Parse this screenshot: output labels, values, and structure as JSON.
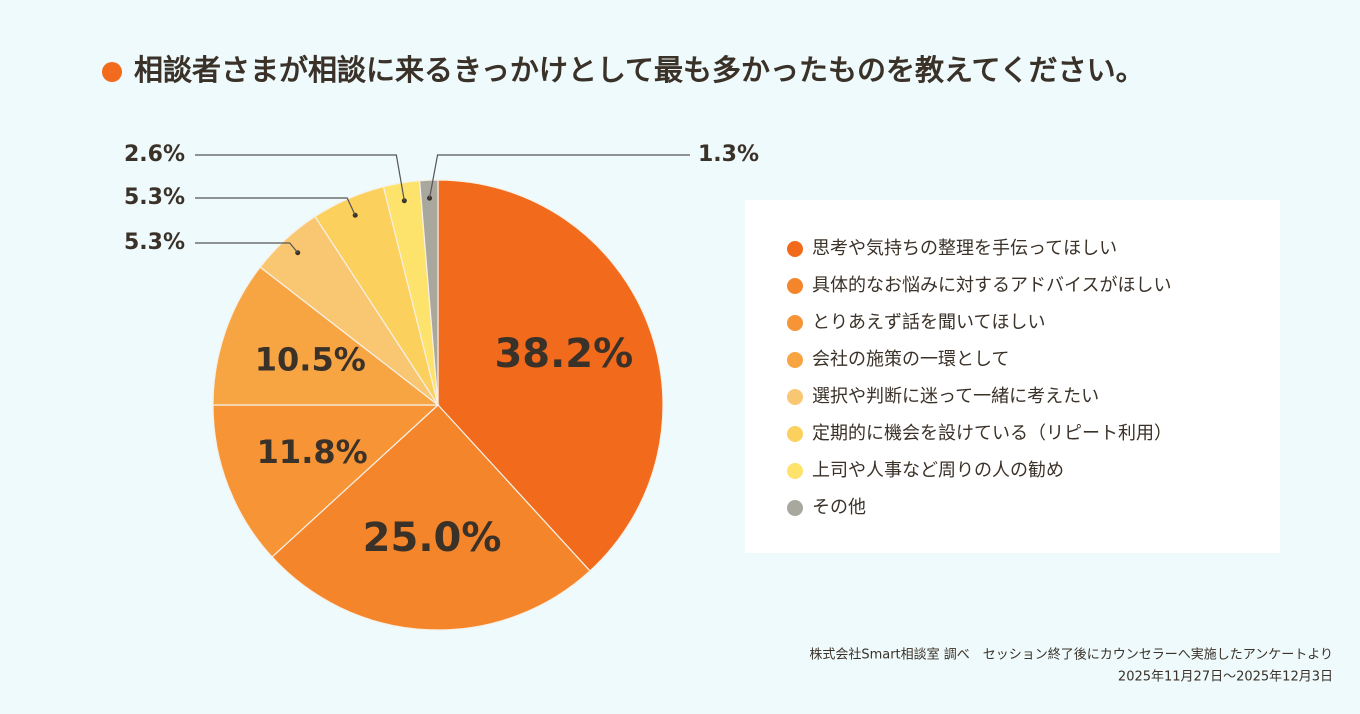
{
  "chart_data": {
    "type": "pie",
    "title": "相談者さまが相談に来るきっかけとして最も多かったものを教えてください。",
    "categories": [
      "思考や気持ちの整理を手伝ってほしい",
      "具体的なお悩みに対するアドバイスがほしい",
      "とりあえず話を聞いてほしい",
      "会社の施策の一環として",
      "選択や判断に迷って一緒に考えたい",
      "定期的に機会を設けている（リピート利用）",
      "上司や人事など周りの人の勧め",
      "その他"
    ],
    "values": [
      38.2,
      25.0,
      11.8,
      10.5,
      5.3,
      5.3,
      2.6,
      1.3
    ],
    "value_labels": [
      "38.2%",
      "25.0%",
      "11.8%",
      "10.5%",
      "5.3%",
      "5.3%",
      "2.6%",
      "1.3%"
    ],
    "colors": [
      "#f26a1b",
      "#f5852a",
      "#f69436",
      "#f7a442",
      "#f9c772",
      "#fbd05c",
      "#fde36c",
      "#a9a89f"
    ],
    "notes": [
      "株式会社Smart相談室 調べ　セッション終了後にカウンセラーへ実施したアンケートより",
      "2025年11月27日〜2025年12月3日"
    ]
  }
}
